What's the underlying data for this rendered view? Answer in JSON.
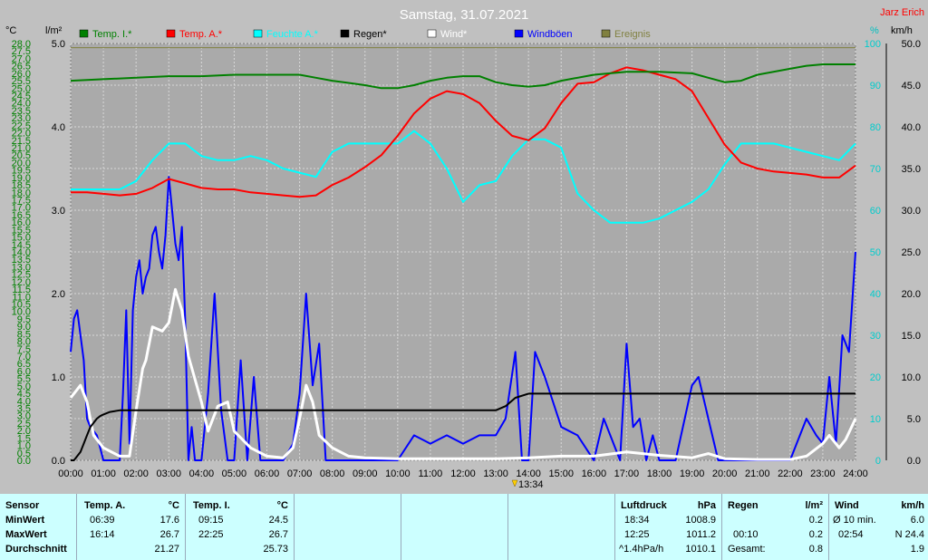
{
  "title": "Samstag, 31.07.2021",
  "station": "Jarz Erich",
  "units": {
    "left_temp": "°C",
    "left_rain": "l/m²",
    "right_pct": "%",
    "right_wind": "km/h"
  },
  "legend": [
    {
      "label": "Temp. I.*",
      "color": "#008000"
    },
    {
      "label": "Temp. A.*",
      "color": "#ff0000"
    },
    {
      "label": "Feuchte A.*",
      "color": "#00ffff"
    },
    {
      "label": "Regen*",
      "color": "#000000"
    },
    {
      "label": "Wind*",
      "color": "#ffffff"
    },
    {
      "label": "Windböen",
      "color": "#0000ff"
    },
    {
      "label": "Ereignis",
      "color": "#808040"
    }
  ],
  "marker_label": "13:34",
  "chart_data": {
    "type": "line",
    "x_unit": "hour",
    "xlim": [
      0,
      24
    ],
    "x_ticks": [
      "00:00",
      "01:00",
      "02:00",
      "03:00",
      "04:00",
      "05:00",
      "06:00",
      "07:00",
      "08:00",
      "09:00",
      "10:00",
      "11:00",
      "12:00",
      "13:00",
      "14:00",
      "15:00",
      "16:00",
      "17:00",
      "18:00",
      "19:00",
      "20:00",
      "21:00",
      "22:00",
      "23:00",
      "24:00"
    ],
    "axes": {
      "temp": {
        "min": 0,
        "max": 28,
        "step": 0.5,
        "ticks": [
          "0.0",
          "0.5",
          "1.0",
          "1.5",
          "2.0",
          "2.5",
          "3.0",
          "3.5",
          "4.0",
          "4.5",
          "5.0",
          "5.5",
          "6.0",
          "6.5",
          "7.0",
          "7.5",
          "8.0",
          "8.5",
          "9.0",
          "9.5",
          "10.0",
          "10.5",
          "11.0",
          "11.5",
          "12.0",
          "12.5",
          "13.0",
          "13.5",
          "14.0",
          "14.5",
          "15.0",
          "15.5",
          "16.0",
          "16.5",
          "17.0",
          "17.5",
          "18.0",
          "18.5",
          "19.0",
          "19.5",
          "20.0",
          "20.5",
          "21.0",
          "21.5",
          "22.0",
          "22.5",
          "23.0",
          "23.5",
          "24.0",
          "24.5",
          "25.0",
          "25.5",
          "26.0",
          "26.5",
          "27.0",
          "27.5",
          "28.0"
        ]
      },
      "rain": {
        "min": 0,
        "max": 5,
        "ticks": [
          "0.0",
          "1.0",
          "2.0",
          "3.0",
          "4.0",
          "5.0"
        ]
      },
      "humidity": {
        "min": 0,
        "max": 100,
        "ticks": [
          "0",
          "10",
          "20",
          "30",
          "40",
          "50",
          "60",
          "70",
          "80",
          "90",
          "100"
        ]
      },
      "wind": {
        "min": 0,
        "max": 50,
        "ticks": [
          "0.0",
          "5.0",
          "10.0",
          "15.0",
          "20.0",
          "25.0",
          "30.0",
          "35.0",
          "40.0",
          "45.0",
          "50.0"
        ]
      }
    },
    "series": [
      {
        "name": "Temp. I.*",
        "axis": "temp",
        "color": "#008000",
        "x": [
          0,
          1,
          2,
          3,
          4,
          5,
          6,
          7,
          7.5,
          8,
          9,
          9.5,
          10,
          10.5,
          11,
          11.5,
          12,
          12.5,
          13,
          13.5,
          14,
          14.5,
          15,
          16,
          17,
          18,
          19,
          19.5,
          20,
          20.5,
          21,
          22,
          22.5,
          23,
          24
        ],
        "y": [
          25.5,
          25.6,
          25.7,
          25.8,
          25.8,
          25.9,
          25.9,
          25.9,
          25.7,
          25.5,
          25.2,
          25.0,
          25.0,
          25.2,
          25.5,
          25.7,
          25.8,
          25.8,
          25.4,
          25.2,
          25.1,
          25.2,
          25.5,
          25.9,
          26.1,
          26.1,
          26.0,
          25.7,
          25.4,
          25.5,
          25.9,
          26.3,
          26.5,
          26.6,
          26.6
        ]
      },
      {
        "name": "Temp. A.*",
        "axis": "temp",
        "color": "#ff0000",
        "x": [
          0,
          0.5,
          1,
          1.5,
          2,
          2.5,
          3,
          3.5,
          4,
          4.5,
          5,
          5.5,
          6,
          6.5,
          7,
          7.5,
          8,
          8.5,
          9,
          9.5,
          10,
          10.5,
          11,
          11.5,
          12,
          12.5,
          13,
          13.5,
          14,
          14.5,
          15,
          15.5,
          16,
          16.5,
          17,
          17.5,
          18,
          18.5,
          19,
          19.5,
          20,
          20.5,
          21,
          21.5,
          22,
          22.5,
          23,
          23.5,
          24
        ],
        "y": [
          18.0,
          18.0,
          17.9,
          17.8,
          17.9,
          18.3,
          18.9,
          18.6,
          18.3,
          18.2,
          18.2,
          18.0,
          17.9,
          17.8,
          17.7,
          17.8,
          18.5,
          19.0,
          19.7,
          20.5,
          21.8,
          23.3,
          24.3,
          24.8,
          24.6,
          24.0,
          22.8,
          21.8,
          21.5,
          22.3,
          24.0,
          25.3,
          25.4,
          26.0,
          26.4,
          26.2,
          25.9,
          25.6,
          24.8,
          23.0,
          21.2,
          20.0,
          19.6,
          19.4,
          19.3,
          19.2,
          19.0,
          19.0,
          19.8
        ]
      },
      {
        "name": "Feuchte A.*",
        "axis": "humidity",
        "color": "#00ffff",
        "x": [
          0,
          0.5,
          1,
          1.5,
          2,
          2.5,
          3,
          3.5,
          4,
          4.5,
          5,
          5.5,
          6,
          6.5,
          7,
          7.5,
          8,
          8.5,
          9,
          9.5,
          10,
          10.5,
          11,
          11.5,
          12,
          12.5,
          13,
          13.5,
          14,
          14.5,
          15,
          15.5,
          16,
          16.5,
          17,
          17.5,
          18,
          18.5,
          19,
          19.5,
          20,
          20.5,
          21,
          21.5,
          22,
          22.5,
          23,
          23.5,
          24
        ],
        "y": [
          65,
          65,
          65,
          65,
          67,
          72,
          76,
          76,
          73,
          72,
          72,
          73,
          72,
          70,
          69,
          68,
          74,
          76,
          76,
          76,
          76,
          79,
          76,
          70,
          62,
          66,
          67,
          73,
          77,
          77,
          75,
          64,
          60,
          57,
          57,
          57,
          58,
          60,
          62,
          65,
          71,
          76,
          76,
          76,
          75,
          74,
          73,
          72,
          76
        ]
      },
      {
        "name": "Regen*",
        "axis": "rain",
        "color": "#000000",
        "x": [
          0,
          0.1,
          0.2,
          0.3,
          0.4,
          0.5,
          0.6,
          0.7,
          0.8,
          0.9,
          1,
          1.2,
          1.5,
          2,
          3,
          4,
          5,
          6,
          7,
          8,
          9,
          10,
          11,
          12,
          13,
          13.3,
          13.6,
          14,
          14.5,
          15,
          16,
          17,
          18,
          19,
          20,
          21,
          22,
          23,
          24
        ],
        "y": [
          0,
          0,
          0.05,
          0.1,
          0.2,
          0.3,
          0.4,
          0.45,
          0.5,
          0.53,
          0.55,
          0.58,
          0.6,
          0.6,
          0.6,
          0.6,
          0.6,
          0.6,
          0.6,
          0.6,
          0.6,
          0.6,
          0.6,
          0.6,
          0.6,
          0.65,
          0.75,
          0.8,
          0.8,
          0.8,
          0.8,
          0.8,
          0.8,
          0.8,
          0.8,
          0.8,
          0.8,
          0.8,
          0.8
        ]
      },
      {
        "name": "Wind*",
        "axis": "wind",
        "color": "#ffffff",
        "x": [
          0,
          0.2,
          0.3,
          0.5,
          0.7,
          1,
          1.5,
          1.8,
          2,
          2.2,
          2.3,
          2.5,
          2.8,
          3,
          3.2,
          3.4,
          3.6,
          4,
          4.2,
          4.5,
          4.8,
          5,
          5.5,
          6,
          6.5,
          6.8,
          7,
          7.2,
          7.4,
          7.6,
          8,
          8.5,
          9,
          10,
          11,
          12,
          13,
          14,
          15,
          16,
          17,
          18,
          19,
          19.5,
          20,
          21,
          22,
          22.5,
          23,
          23.2,
          23.5,
          23.7,
          24
        ],
        "y": [
          7.5,
          8.5,
          9.0,
          7.0,
          3.0,
          1.5,
          0.5,
          0.5,
          6.0,
          11.0,
          12.0,
          16.0,
          15.5,
          16.5,
          20.5,
          18.0,
          12.5,
          7.0,
          3.5,
          6.5,
          7.0,
          3.5,
          1.5,
          0.5,
          0.3,
          1.5,
          5.0,
          9.0,
          7.0,
          3.0,
          1.5,
          0.5,
          0.3,
          0.2,
          0.2,
          0.2,
          0.2,
          0.3,
          0.5,
          0.5,
          1.0,
          0.6,
          0.3,
          0.8,
          0.2,
          0.1,
          0.1,
          0.5,
          2.0,
          3.0,
          1.5,
          2.5,
          5.0
        ]
      },
      {
        "name": "Windböen",
        "axis": "wind",
        "color": "#0000ff",
        "x": [
          0,
          0.1,
          0.2,
          0.3,
          0.4,
          0.5,
          0.6,
          0.8,
          1,
          1.2,
          1.5,
          1.6,
          1.7,
          1.8,
          1.9,
          2,
          2.1,
          2.2,
          2.3,
          2.4,
          2.5,
          2.6,
          2.7,
          2.8,
          2.9,
          3,
          3.1,
          3.2,
          3.3,
          3.4,
          3.5,
          3.6,
          3.7,
          3.8,
          4,
          4.2,
          4.4,
          4.6,
          4.8,
          5,
          5.2,
          5.4,
          5.6,
          5.8,
          6,
          6.5,
          6.8,
          7,
          7.2,
          7.4,
          7.6,
          7.8,
          8,
          8.3,
          8.6,
          9,
          9.5,
          10,
          10.5,
          11,
          11.5,
          12,
          12.5,
          13,
          13.3,
          13.6,
          13.8,
          14,
          14.2,
          14.5,
          15,
          15.5,
          16,
          16.3,
          16.5,
          16.8,
          17,
          17.2,
          17.4,
          17.6,
          17.8,
          18,
          18.5,
          19,
          19.2,
          19.5,
          19.8,
          20,
          21,
          22,
          22.5,
          22.8,
          23,
          23.2,
          23.4,
          23.6,
          23.8,
          24
        ],
        "y": [
          13,
          17,
          18,
          15,
          12,
          5,
          4,
          3,
          0,
          0,
          0,
          8,
          18,
          2,
          18,
          22,
          24,
          20,
          22,
          23,
          27,
          28,
          25,
          23,
          27,
          34,
          30,
          26,
          24,
          28,
          17,
          0,
          4,
          0,
          0,
          8,
          20,
          6,
          0,
          0,
          12,
          0,
          10,
          0,
          0,
          0,
          2,
          8,
          20,
          9,
          14,
          0,
          0,
          0,
          0,
          0,
          0,
          0,
          3,
          2,
          3,
          2,
          3,
          3,
          5,
          13,
          0,
          0,
          13,
          10,
          4,
          3,
          0,
          5,
          3,
          0,
          14,
          4,
          5,
          0,
          3,
          0,
          0,
          9,
          10,
          5,
          0,
          0,
          0,
          0,
          5,
          3,
          2,
          10,
          2,
          15,
          13,
          25
        ]
      },
      {
        "name": "Ereignis",
        "axis": "humidity",
        "color": "#808040",
        "x": [
          0,
          1,
          2,
          3,
          4,
          5,
          6,
          7,
          8,
          9,
          10,
          11,
          12,
          13,
          14,
          15,
          16,
          17,
          18,
          19,
          20,
          21,
          22,
          23,
          24
        ],
        "y": [
          99,
          99,
          99,
          99,
          99,
          99,
          99,
          99,
          99,
          99,
          99,
          99,
          99,
          99,
          99,
          99,
          99,
          99,
          99,
          99,
          99,
          99,
          99,
          99,
          99
        ]
      }
    ]
  },
  "stats": {
    "sensor": {
      "header": "Sensor",
      "rows": [
        "MinWert",
        "MaxWert",
        "Durchschnitt"
      ]
    },
    "temp_a": {
      "header": "Temp. A.",
      "unit": "°C",
      "min_time": "06:39",
      "min_val": "17.6",
      "max_time": "16:14",
      "max_val": "26.7",
      "avg": "21.27"
    },
    "temp_i": {
      "header": "Temp. I.",
      "unit": "°C",
      "min_time": "09:15",
      "min_val": "24.5",
      "max_time": "22:25",
      "max_val": "26.7",
      "avg": "25.73"
    },
    "pressure": {
      "header": "Luftdruck",
      "unit": "hPa",
      "min_time": "18:34",
      "min_val": "1008.9",
      "max_time": "12:25",
      "max_val": "1011.2",
      "trend": "^1.4hPa/h",
      "avg": "1010.1"
    },
    "rain": {
      "header": "Regen",
      "unit": "l/m²",
      "r1_label": "",
      "r1_val": "0.2",
      "r2_label": "00:10",
      "r2_val": "0.2",
      "total_label": "Gesamt:",
      "total_val": "0.8"
    },
    "wind": {
      "header": "Wind",
      "unit": "km/h",
      "avg_label": "Ø 10 min.",
      "avg_val": "6.0",
      "max_time": "02:54",
      "max_val": "N 24.4",
      "val3": "1.9"
    }
  }
}
